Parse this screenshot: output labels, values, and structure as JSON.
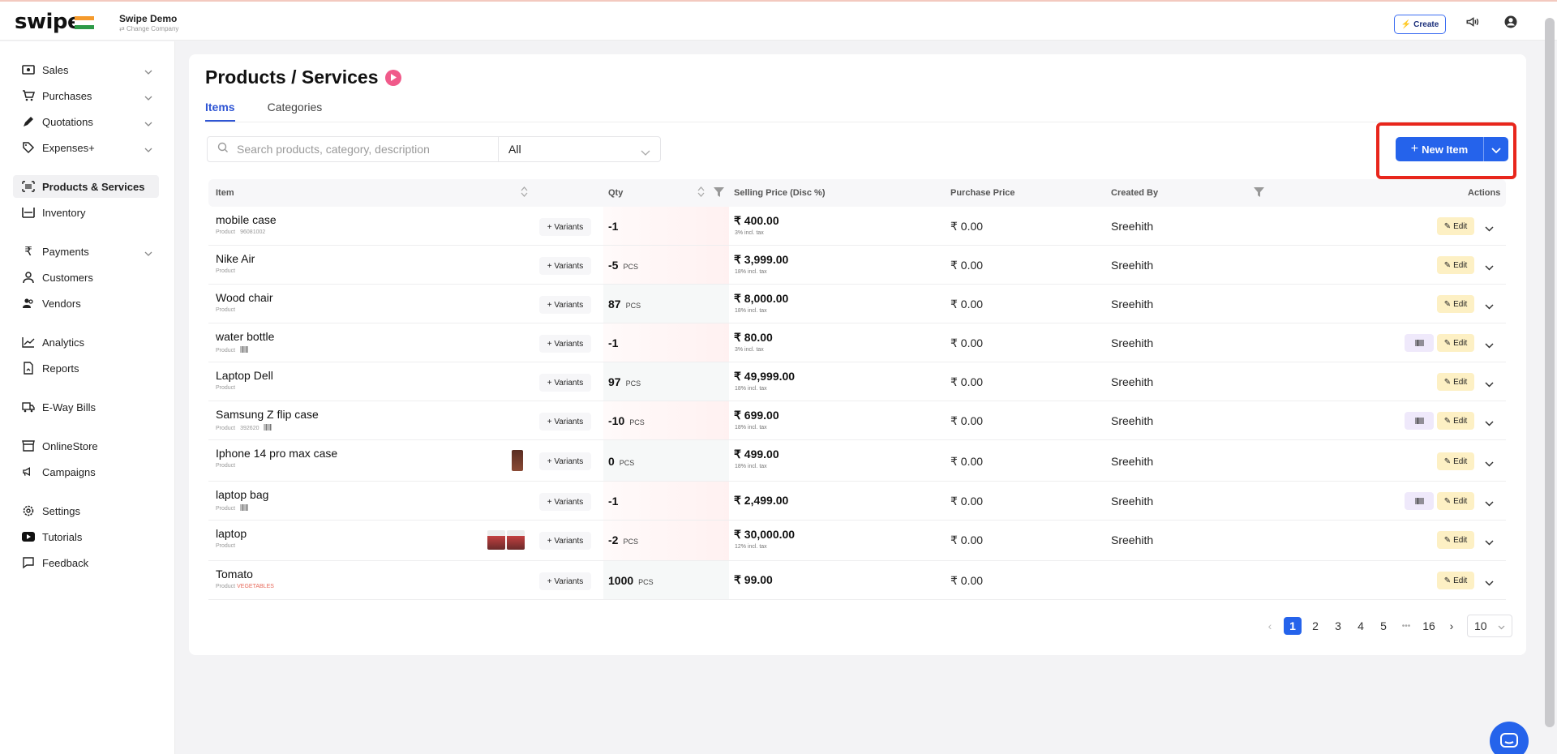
{
  "app": {
    "logo": "swipe",
    "company": "Swipe Demo",
    "change_company": "Change Company"
  },
  "topbar": {
    "create_label": "Create"
  },
  "sidebar": {
    "items": [
      {
        "label": "Sales",
        "icon": "money-icon",
        "chevron": true
      },
      {
        "label": "Purchases",
        "icon": "cart-icon",
        "chevron": true
      },
      {
        "label": "Quotations",
        "icon": "pen-icon",
        "chevron": true
      },
      {
        "label": "Expenses+",
        "icon": "tag-icon",
        "chevron": true
      },
      {
        "label": "Products & Services",
        "icon": "barcode-icon",
        "active": true
      },
      {
        "label": "Inventory",
        "icon": "inventory-icon"
      },
      {
        "label": "Payments",
        "icon": "rupee-icon",
        "chevron": true
      },
      {
        "label": "Customers",
        "icon": "user-icon"
      },
      {
        "label": "Vendors",
        "icon": "users-icon"
      },
      {
        "label": "Analytics",
        "icon": "chart-icon"
      },
      {
        "label": "Reports",
        "icon": "report-icon"
      },
      {
        "label": "E-Way Bills",
        "icon": "truck-icon"
      },
      {
        "label": "OnlineStore",
        "icon": "store-icon"
      },
      {
        "label": "Campaigns",
        "icon": "megaphone-icon"
      },
      {
        "label": "Settings",
        "icon": "gear-icon"
      },
      {
        "label": "Tutorials",
        "icon": "youtube-icon"
      },
      {
        "label": "Feedback",
        "icon": "feedback-icon"
      }
    ]
  },
  "page": {
    "title": "Products / Services",
    "tabs": [
      {
        "label": "Items",
        "active": true
      },
      {
        "label": "Categories"
      }
    ],
    "search_placeholder": "Search products, category, description",
    "filter_value": "All",
    "new_item_label": "New Item"
  },
  "table": {
    "headers": {
      "item": "Item",
      "qty": "Qty",
      "selling": "Selling Price (Disc %)",
      "purchase": "Purchase Price",
      "created_by": "Created By",
      "actions": "Actions"
    },
    "variants_label": "Variants",
    "edit_label": "Edit",
    "rows": [
      {
        "name": "mobile case",
        "type": "Product",
        "code": "96081002",
        "qty": "-1",
        "unit": "",
        "price": "₹ 400.00",
        "tax": "3% incl. tax",
        "purchase": "₹ 0.00",
        "created_by": "Sreehith"
      },
      {
        "name": "Nike Air",
        "type": "Product",
        "code": "",
        "qty": "-5",
        "unit": "PCS",
        "price": "₹ 3,999.00",
        "tax": "18% incl. tax",
        "purchase": "₹ 0.00",
        "created_by": "Sreehith"
      },
      {
        "name": "Wood chair",
        "type": "Product",
        "code": "",
        "qty": "87",
        "unit": "PCS",
        "price": "₹ 8,000.00",
        "tax": "18% incl. tax",
        "purchase": "₹ 0.00",
        "created_by": "Sreehith"
      },
      {
        "name": "water bottle",
        "type": "Product",
        "code": "",
        "qty": "-1",
        "unit": "",
        "price": "₹ 80.00",
        "tax": "3% incl. tax",
        "purchase": "₹ 0.00",
        "created_by": "Sreehith"
      },
      {
        "name": "Laptop Dell",
        "type": "Product",
        "code": "",
        "qty": "97",
        "unit": "PCS",
        "price": "₹ 49,999.00",
        "tax": "18% incl. tax",
        "purchase": "₹ 0.00",
        "created_by": "Sreehith"
      },
      {
        "name": "Samsung Z flip case",
        "type": "Product",
        "code": "392620",
        "qty": "-10",
        "unit": "PCS",
        "price": "₹ 699.00",
        "tax": "18% incl. tax",
        "purchase": "₹ 0.00",
        "created_by": "Sreehith"
      },
      {
        "name": "Iphone 14 pro max case",
        "type": "Product",
        "code": "",
        "qty": "0",
        "unit": "PCS",
        "price": "₹ 499.00",
        "tax": "18% incl. tax",
        "purchase": "₹ 0.00",
        "created_by": "Sreehith"
      },
      {
        "name": "laptop bag",
        "type": "Product",
        "code": "",
        "qty": "-1",
        "unit": "",
        "price": "₹ 2,499.00",
        "tax": "",
        "purchase": "₹ 0.00",
        "created_by": "Sreehith"
      },
      {
        "name": "laptop",
        "type": "Product",
        "code": "",
        "qty": "-2",
        "unit": "PCS",
        "price": "₹ 30,000.00",
        "tax": "12% incl. tax",
        "purchase": "₹ 0.00",
        "created_by": "Sreehith"
      },
      {
        "name": "Tomato",
        "type": "Product",
        "code": "",
        "category": "VEGETABLES",
        "qty": "1000",
        "unit": "PCS",
        "price": "₹ 99.00",
        "tax": "",
        "purchase": "₹ 0.00",
        "created_by": ""
      }
    ]
  },
  "pagination": {
    "pages": [
      "1",
      "2",
      "3",
      "4",
      "5"
    ],
    "ellipsis": "•••",
    "last": "16",
    "page_size": "10"
  },
  "colors": {
    "accent": "#2563eb",
    "highlight": "#e8261c",
    "edit_bg": "#fdf0c4",
    "negative_qty_bg": "#fff5f5"
  }
}
